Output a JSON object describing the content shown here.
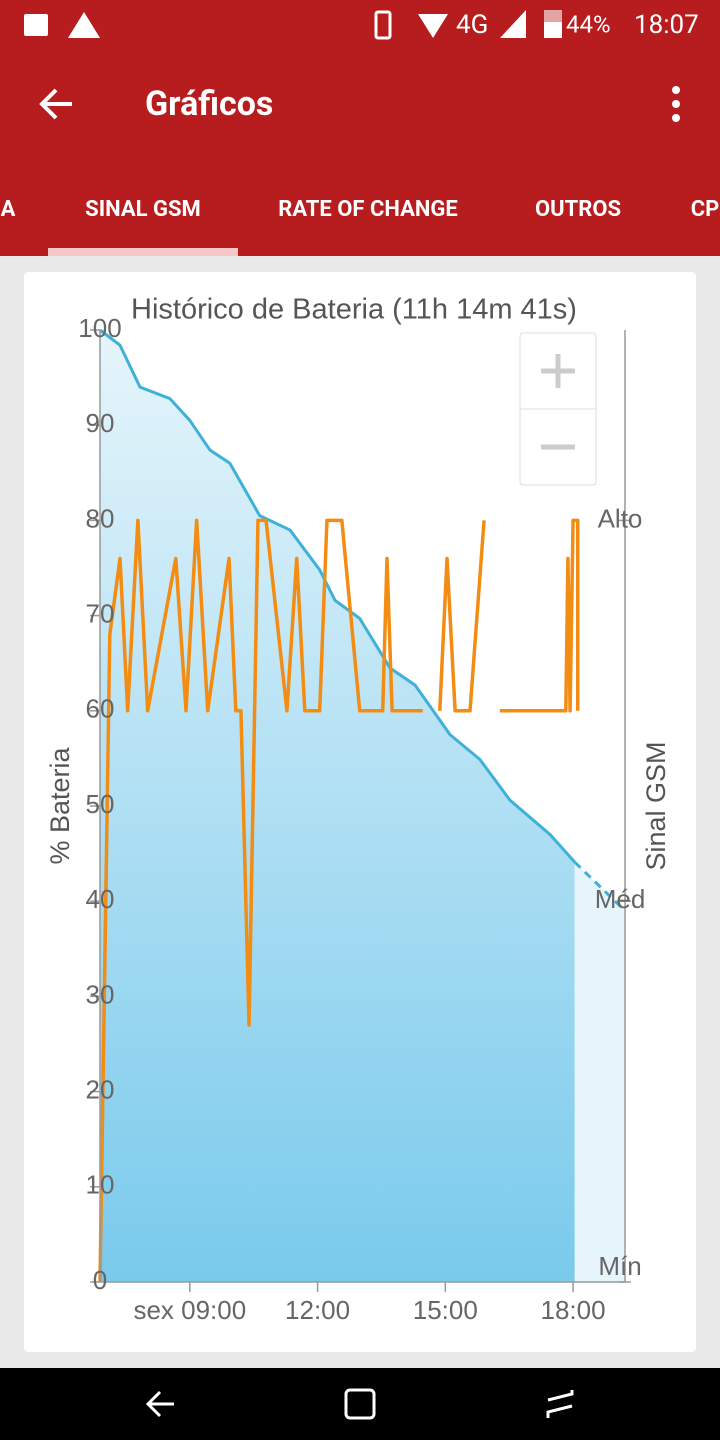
{
  "status_bar": {
    "network": "4G",
    "battery": "44%",
    "time": "18:07"
  },
  "app_bar": {
    "title": "Gráficos"
  },
  "tabs": {
    "items": [
      "A",
      "SINAL GSM",
      "RATE OF CHANGE",
      "OUTROS",
      "CP"
    ],
    "selected": 1
  },
  "chart_data": {
    "type": "line",
    "title": "Histórico de Bateria (11h 14m 41s)",
    "ylabel": "% Bateria",
    "y2label": "Sinal GSM",
    "xlim": [
      6.89,
      19.22
    ],
    "xticks": [
      {
        "value": 9,
        "label": "sex 09:00"
      },
      {
        "value": 12,
        "label": "12:00"
      },
      {
        "value": 15,
        "label": "15:00"
      },
      {
        "value": 18,
        "label": "18:00"
      }
    ],
    "ylim": [
      0,
      100
    ],
    "yticks": [
      0,
      10,
      20,
      30,
      40,
      50,
      60,
      70,
      80,
      90,
      100
    ],
    "y2lim": [
      0,
      2.5
    ],
    "y2ticks": [
      {
        "value": 0,
        "label": "Mín"
      },
      {
        "value": 1,
        "label": "Méd"
      },
      {
        "value": 2,
        "label": "Alto"
      }
    ],
    "series": [
      {
        "color": "#3fb0d8",
        "fill": true,
        "x": [
          6.89,
          7.36,
          7.83,
          8.53,
          9.0,
          9.47,
          9.94,
          10.64,
          11.35,
          12.05,
          12.41,
          12.99,
          13.7,
          14.29,
          15.11,
          15.81,
          16.52,
          17.46,
          18.04
        ],
        "values": [
          100,
          98.4,
          94,
          92.8,
          90.5,
          87.4,
          86,
          80.5,
          79,
          74.8,
          71.6,
          69.7,
          64.5,
          62.7,
          57.5,
          54.9,
          50.6,
          47,
          44.1
        ]
      },
      {
        "color": "#3fb0d8",
        "fill": true,
        "style": "dashed",
        "x": [
          18.04,
          19.22
        ],
        "values": [
          44.1,
          39
        ]
      },
      {
        "color": "#f28c13",
        "axis": "y2",
        "x": [
          6.89,
          7.12,
          7.36,
          7.54,
          7.78,
          8.01,
          8.67,
          8.91,
          9.16,
          9.42,
          9.92,
          10.08,
          10.2,
          10.39,
          10.6,
          10.79,
          11.28,
          11.51,
          11.7,
          12.05,
          12.22,
          12.57,
          12.99,
          13.53,
          13.63,
          13.75,
          14.47,
          14.67,
          14.87,
          15.04,
          15.23,
          15.58,
          15.91,
          16.1,
          16.28,
          17.83,
          17.88,
          17.93,
          18.0,
          18.11,
          18.11
        ],
        "values": [
          0,
          1.7,
          1.9,
          1.5,
          2.0,
          1.5,
          1.9,
          1.5,
          2.0,
          1.5,
          1.9,
          1.5,
          1.5,
          0.675,
          2.0,
          2.0,
          1.5,
          1.9,
          1.5,
          1.5,
          2.0,
          2.0,
          1.5,
          1.5,
          1.9,
          1.5,
          1.5,
          null,
          1.5,
          1.9,
          1.5,
          1.5,
          2.0,
          null,
          1.5,
          1.5,
          1.9,
          1.5,
          2.0,
          2.0,
          1.5
        ]
      }
    ]
  }
}
